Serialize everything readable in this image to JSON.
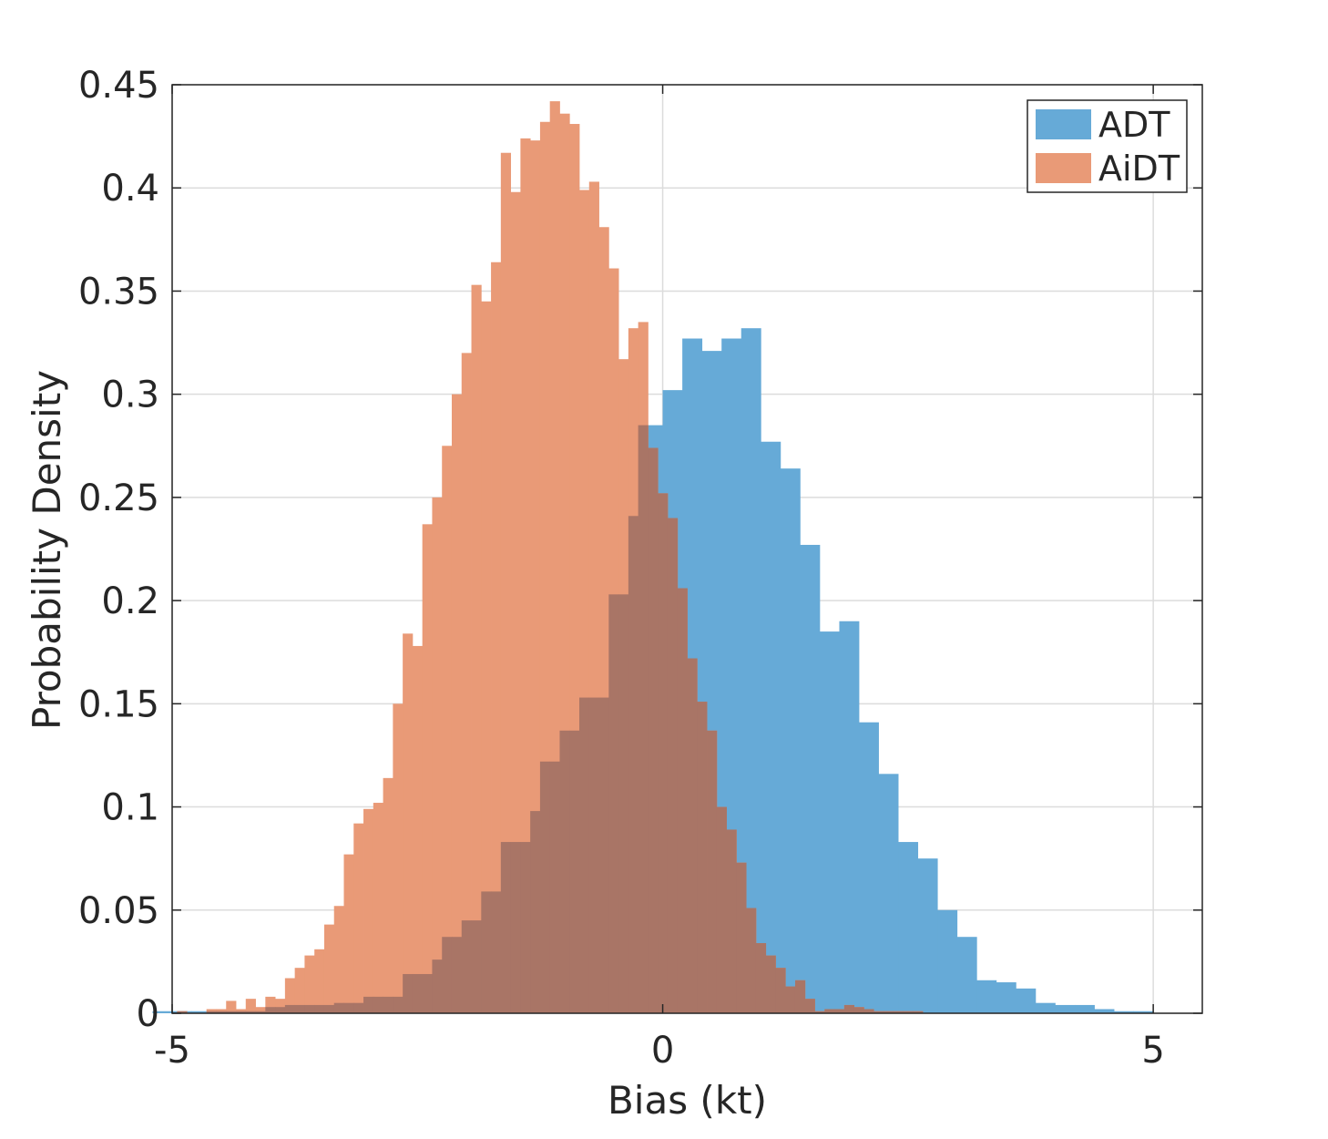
{
  "chart_data": {
    "type": "bar",
    "subtype": "overlapping-histogram",
    "xlabel": "Bias (kt)",
    "ylabel": "Probability Density",
    "xlim": [
      -5.0,
      5.5
    ],
    "ylim": [
      0,
      0.45
    ],
    "xticks": [
      -5,
      0,
      5
    ],
    "xtick_labels": [
      "-5",
      "0",
      "5"
    ],
    "yticks": [
      0,
      0.05,
      0.1,
      0.15,
      0.2,
      0.25,
      0.3,
      0.35,
      0.4,
      0.45
    ],
    "ytick_labels": [
      "0",
      "0.05",
      "0.1",
      "0.15",
      "0.2",
      "0.25",
      "0.3",
      "0.35",
      "0.4",
      "0.45"
    ],
    "grid": true,
    "legend_position": "top-right",
    "overlap_color": "#a97566",
    "series": [
      {
        "name": "ADT",
        "color": "#66aad7",
        "bin_start": -5.2,
        "bin_width": 0.2,
        "values": [
          0.001,
          0.001,
          0.001,
          0.001,
          0.001,
          0.001,
          0.003,
          0.004,
          0.004,
          0.005,
          0.005,
          0.008,
          0.008,
          0.019,
          0.026,
          0.037,
          0.045,
          0.059,
          0.083,
          0.098,
          0.122,
          0.137,
          0.153,
          0.203,
          0.241,
          0.285,
          0.302,
          0.327,
          0.321,
          0.327,
          0.332,
          0.277,
          0.264,
          0.227,
          0.185,
          0.19,
          0.141,
          0.116,
          0.083,
          0.075,
          0.05,
          0.037,
          0.016,
          0.015,
          0.012,
          0.005,
          0.004,
          0.004,
          0.002,
          0.001,
          0.001
        ]
      },
      {
        "name": "AiDT",
        "color": "#e99a77",
        "bin_start": -4.95,
        "bin_width": 0.1,
        "values": [
          0.001,
          0.0,
          0.0,
          0.002,
          0.002,
          0.006,
          0.002,
          0.007,
          0.003,
          0.008,
          0.007,
          0.017,
          0.022,
          0.028,
          0.031,
          0.043,
          0.052,
          0.077,
          0.092,
          0.099,
          0.102,
          0.114,
          0.15,
          0.184,
          0.178,
          0.237,
          0.25,
          0.275,
          0.3,
          0.32,
          0.353,
          0.345,
          0.364,
          0.417,
          0.398,
          0.424,
          0.423,
          0.432,
          0.442,
          0.436,
          0.431,
          0.399,
          0.403,
          0.381,
          0.361,
          0.317,
          0.332,
          0.335,
          0.274,
          0.252,
          0.24,
          0.206,
          0.172,
          0.151,
          0.137,
          0.1,
          0.089,
          0.073,
          0.051,
          0.034,
          0.028,
          0.022,
          0.013,
          0.016,
          0.007,
          0.001,
          0.002,
          0.002,
          0.004,
          0.003,
          0.002,
          0.001,
          0.001,
          0.001,
          0.001,
          0.001
        ]
      }
    ]
  }
}
